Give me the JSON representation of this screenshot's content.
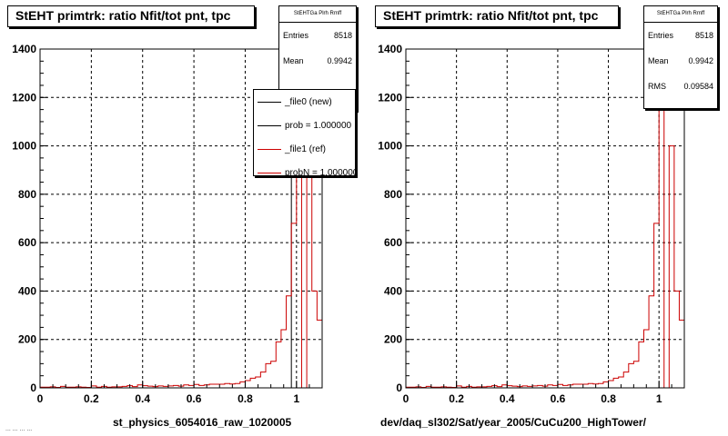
{
  "colors": {
    "new": "#000000",
    "ref": "#cc0000",
    "grid": "#000000"
  },
  "chart_data": [
    {
      "type": "histogram",
      "title": "StEHT primtrk: ratio Nfit/tot pnt, tpc",
      "xlabel": "st_physics_6054016_raw_1020005",
      "xlim": [
        0,
        1.1
      ],
      "ylim": [
        0,
        1400
      ],
      "xticks": [
        0,
        0.2,
        0.4,
        0.6,
        0.8,
        1
      ],
      "xtick_labels": [
        "0",
        "0.2",
        "0.4",
        "0.6",
        "0.8",
        "1"
      ],
      "yticks": [
        0,
        200,
        400,
        600,
        800,
        1000,
        1200,
        1400
      ],
      "ytick_labels": [
        "0",
        "200",
        "400",
        "600",
        "800",
        "1000",
        "1200",
        "1400"
      ],
      "grid": true,
      "bin_width": 0.02,
      "stats": {
        "name": "StEHTGa Plrh Rmff",
        "rows": [
          {
            "label": "Entries",
            "value": "8518"
          },
          {
            "label": "Mean",
            "value": "0.9942"
          }
        ]
      },
      "legend": [
        {
          "label": "_file0 (new)",
          "color": "#000000"
        },
        {
          "label": "prob = 1.000000",
          "color": "#000000"
        },
        {
          "label": "_file1 (ref)",
          "color": "#cc0000"
        },
        {
          "label": "probN = 1.000000",
          "color": "#cc0000"
        }
      ],
      "series": [
        {
          "name": "_file0 (new)",
          "values": [
            0,
            0,
            0,
            0,
            0,
            0,
            0,
            0,
            0,
            0,
            0,
            0,
            0,
            0,
            0,
            0,
            0,
            0,
            0,
            0,
            0,
            0,
            0,
            0,
            0,
            0,
            0,
            0,
            0,
            0,
            0,
            0,
            0,
            0,
            0,
            0,
            0,
            0,
            0,
            0,
            0,
            0,
            0,
            0,
            0,
            0,
            0,
            0,
            0,
            1230,
            1350,
            1230,
            1230,
            1230,
            1230
          ]
        },
        {
          "name": "_file1 (ref)",
          "values": [
            3,
            3,
            4,
            2,
            6,
            3,
            3,
            4,
            3,
            2,
            8,
            3,
            6,
            3,
            4,
            4,
            6,
            9,
            5,
            12,
            9,
            7,
            5,
            8,
            6,
            8,
            10,
            7,
            12,
            10,
            14,
            10,
            12,
            15,
            15,
            15,
            18,
            16,
            18,
            25,
            30,
            40,
            45,
            65,
            100,
            110,
            190,
            240,
            380,
            680,
            1350,
            0,
            1000,
            400,
            280
          ]
        }
      ]
    },
    {
      "type": "histogram",
      "title": "StEHT primtrk: ratio Nfit/tot pnt, tpc",
      "xlabel": "dev/daq_sl302/Sat/year_2005/CuCu200_HighTower/",
      "xlim": [
        0,
        1.1
      ],
      "ylim": [
        0,
        1400
      ],
      "xticks": [
        0,
        0.2,
        0.4,
        0.6,
        0.8,
        1
      ],
      "xtick_labels": [
        "0",
        "0.2",
        "0.4",
        "0.6",
        "0.8",
        "1"
      ],
      "yticks": [
        0,
        200,
        400,
        600,
        800,
        1000,
        1200,
        1400
      ],
      "ytick_labels": [
        "0",
        "200",
        "400",
        "600",
        "800",
        "1000",
        "1200",
        "1400"
      ],
      "grid": true,
      "bin_width": 0.02,
      "stats": {
        "name": "StEHTGa Plrh Rmff",
        "rows": [
          {
            "label": "Entries",
            "value": "8518"
          },
          {
            "label": "Mean",
            "value": "0.9942"
          },
          {
            "label": "RMS",
            "value": "0.09584"
          }
        ]
      },
      "series": [
        {
          "name": "_file1 (ref)",
          "values": [
            3,
            3,
            4,
            2,
            6,
            3,
            3,
            4,
            3,
            2,
            8,
            3,
            6,
            3,
            4,
            4,
            6,
            9,
            5,
            12,
            9,
            7,
            5,
            8,
            6,
            8,
            10,
            7,
            12,
            10,
            14,
            10,
            12,
            15,
            15,
            15,
            18,
            16,
            18,
            25,
            30,
            40,
            45,
            65,
            100,
            110,
            190,
            240,
            380,
            680,
            1350,
            0,
            1000,
            400,
            280
          ]
        }
      ]
    }
  ],
  "footer": {
    "corner_text": "... ... ... ..."
  }
}
